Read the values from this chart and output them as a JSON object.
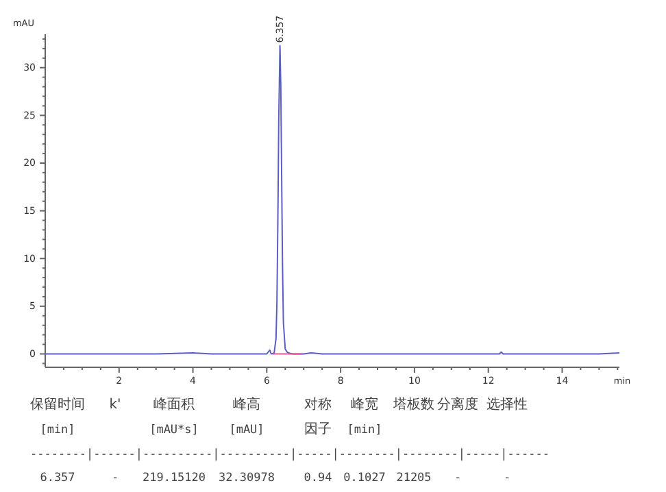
{
  "chart_data": {
    "type": "line",
    "ylabel": "mAU",
    "xlabel": "min",
    "xlim": [
      0,
      15.55
    ],
    "ylim": [
      -1.4,
      33.5
    ],
    "xticks": [
      {
        "value": 0.5,
        "label": null
      },
      {
        "value": 1,
        "label": null
      },
      {
        "value": 1.5,
        "label": null
      },
      2,
      {
        "value": 2.5,
        "label": null
      },
      {
        "value": 3,
        "label": null
      },
      {
        "value": 3.5,
        "label": null
      },
      4,
      {
        "value": 4.5,
        "label": null
      },
      {
        "value": 5,
        "label": null
      },
      {
        "value": 5.5,
        "label": null
      },
      6,
      {
        "value": 6.5,
        "label": null
      },
      {
        "value": 7,
        "label": null
      },
      {
        "value": 7.5,
        "label": null
      },
      8,
      {
        "value": 8.5,
        "label": null
      },
      {
        "value": 9,
        "label": null
      },
      {
        "value": 9.5,
        "label": null
      },
      10,
      {
        "value": 10.5,
        "label": null
      },
      {
        "value": 11,
        "label": null
      },
      {
        "value": 11.5,
        "label": null
      },
      12,
      {
        "value": 12.5,
        "label": null
      },
      {
        "value": 13,
        "label": null
      },
      {
        "value": 13.5,
        "label": null
      },
      14,
      {
        "value": 14.5,
        "label": null
      },
      {
        "value": 15,
        "label": null
      },
      {
        "value": 15.5,
        "label": null
      }
    ],
    "yticks": [
      {
        "value": -1,
        "label": null
      },
      0,
      {
        "value": 1,
        "label": null
      },
      {
        "value": 2,
        "label": null
      },
      {
        "value": 3,
        "label": null
      },
      {
        "value": 4,
        "label": null
      },
      5,
      {
        "value": 6,
        "label": null
      },
      {
        "value": 7,
        "label": null
      },
      {
        "value": 8,
        "label": null
      },
      {
        "value": 9,
        "label": null
      },
      10,
      {
        "value": 11,
        "label": null
      },
      {
        "value": 12,
        "label": null
      },
      {
        "value": 13,
        "label": null
      },
      {
        "value": 14,
        "label": null
      },
      15,
      {
        "value": 16,
        "label": null
      },
      {
        "value": 17,
        "label": null
      },
      {
        "value": 18,
        "label": null
      },
      {
        "value": 19,
        "label": null
      },
      20,
      {
        "value": 21,
        "label": null
      },
      {
        "value": 22,
        "label": null
      },
      {
        "value": 23,
        "label": null
      },
      {
        "value": 24,
        "label": null
      },
      25,
      {
        "value": 26,
        "label": null
      },
      {
        "value": 27,
        "label": null
      },
      {
        "value": 28,
        "label": null
      },
      {
        "value": 29,
        "label": null
      },
      30,
      {
        "value": 31,
        "label": null
      },
      {
        "value": 32,
        "label": null
      },
      {
        "value": 33,
        "label": null
      }
    ],
    "grid": false,
    "line_style": "solid",
    "series": [
      {
        "color": "#5a5fc8",
        "x": [
          0,
          1,
          2,
          3,
          4,
          4.5,
          5,
          5.5,
          6,
          6.08,
          6.12,
          6.2,
          6.25,
          6.275,
          6.3,
          6.325,
          6.357,
          6.38,
          6.4,
          6.425,
          6.45,
          6.5,
          6.55,
          6.6,
          6.7,
          7,
          7.2,
          7.5,
          8,
          9,
          10,
          11,
          12,
          12.3,
          12.35,
          12.4,
          13,
          14,
          15,
          15.55
        ],
        "values": [
          0,
          0,
          0,
          0,
          0.1,
          0,
          0,
          0,
          0,
          0.4,
          0,
          0.1,
          1.6,
          5.4,
          13.9,
          24.6,
          32.31,
          28.1,
          20,
          9.7,
          3.3,
          0.5,
          0.2,
          0.1,
          0,
          0,
          0.1,
          0,
          0,
          0,
          0,
          0,
          0,
          0,
          0.2,
          0,
          0,
          0,
          0,
          0.1
        ]
      },
      {
        "color": "#e0559a",
        "x": [
          6.15,
          6.95
        ],
        "values": [
          0,
          0
        ]
      }
    ],
    "annotations": [
      {
        "text": "6.357",
        "x": 6.357,
        "y": 32.31
      },
      "保留时间\tk'\t峰面积\t峰高\t对称\t峰宽\t塔板数\t分离度\t选择性",
      "[min]\t\t[mAU*s]\t[mAU]\t因子\t[min]\t\t\t",
      "--------|------|----------|----------|-----|--------|--------|-----|------",
      "6.357\t-\t219.15120\t32.30978\t0.94\t0.1027\t21205\t-\t-"
    ]
  }
}
